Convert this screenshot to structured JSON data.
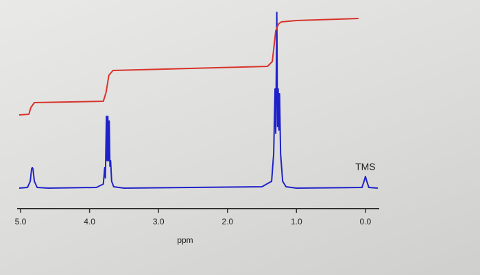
{
  "chart_data": {
    "type": "line",
    "xlabel": "ppm",
    "annotations": [
      {
        "text": "TMS",
        "x": 0
      }
    ],
    "xlim": [
      5.05,
      -0.2
    ],
    "xticks": [
      {
        "value": 5,
        "label": "5.0"
      },
      {
        "value": 4,
        "label": "4.0"
      },
      {
        "value": 3,
        "label": "3.0"
      },
      {
        "value": 2,
        "label": "2.0"
      },
      {
        "value": 1,
        "label": "1.0"
      },
      {
        "value": 0,
        "label": "0.0"
      }
    ],
    "ylim": [
      0,
      290
    ],
    "series": [
      {
        "color": "#1f22c8",
        "x": [
          5.02,
          4.9,
          4.86,
          4.84,
          4.83,
          4.82,
          4.8,
          4.76,
          4.6,
          3.9,
          3.8,
          3.78,
          3.77,
          3.755,
          3.745,
          3.735,
          3.725,
          3.715,
          3.705,
          3.695,
          3.68,
          3.65,
          3.5,
          1.5,
          1.36,
          1.33,
          1.31,
          1.3,
          1.285,
          1.275,
          1.265,
          1.255,
          1.245,
          1.23,
          1.2,
          1.15,
          1.0,
          0.05,
          0.02,
          0,
          -0.02,
          -0.05,
          -0.18
        ],
        "values": [
          30,
          31,
          40,
          58,
          60,
          58,
          40,
          31,
          30,
          31,
          36,
          60,
          45,
          135,
          70,
          135,
          70,
          128,
          62,
          70,
          40,
          32,
          30,
          32,
          40,
          80,
          175,
          110,
          287,
          120,
          175,
          115,
          168,
          80,
          40,
          32,
          30,
          31,
          40,
          47,
          40,
          31,
          30
        ]
      },
      {
        "color": "#d8322a",
        "x": [
          5.02,
          4.88,
          4.85,
          4.8,
          3.8,
          3.76,
          3.72,
          3.66,
          1.42,
          1.35,
          1.3,
          1.26,
          1.22,
          1.0,
          0.1
        ],
        "values": [
          137,
          138,
          148,
          155,
          157,
          170,
          195,
          202,
          208,
          215,
          260,
          270,
          273,
          275,
          278
        ]
      }
    ]
  }
}
